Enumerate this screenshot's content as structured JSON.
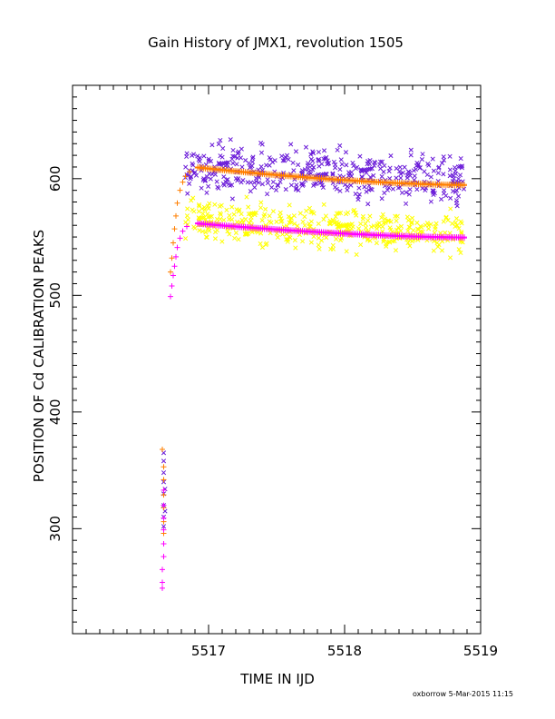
{
  "chart_data": {
    "type": "scatter",
    "title": "Gain History of JMX1, revolution 1505",
    "xlabel": "TIME IN IJD",
    "ylabel": "POSITION OF Cd CALIBRATION PEAKS",
    "xlim": [
      5516.0,
      5519.0
    ],
    "ylim": [
      210,
      680
    ],
    "x_ticks": [
      5517,
      5518,
      5519
    ],
    "y_ticks": [
      300,
      400,
      500,
      600
    ],
    "grid": false,
    "legend": "none",
    "series": [
      {
        "color": "#6a1bd8",
        "marker": "x",
        "points": [
          [
            5516.67,
            365
          ],
          [
            5516.67,
            358
          ],
          [
            5516.67,
            348
          ],
          [
            5516.67,
            340
          ],
          [
            5516.67,
            330
          ],
          [
            5516.67,
            320
          ],
          [
            5516.67,
            310
          ],
          [
            5516.67,
            302
          ],
          [
            5516.68,
            315
          ],
          [
            5516.68,
            334
          ]
        ],
        "cloud": {
          "x_start": 5516.83,
          "x_end": 5518.88,
          "center_start": 612,
          "center_end": 600,
          "spread": 20,
          "count": 430,
          "seed": 7
        }
      },
      {
        "color": "#ffff00",
        "marker": "x",
        "cloud": {
          "x_start": 5516.83,
          "x_end": 5518.88,
          "center_start": 566,
          "center_end": 552,
          "spread": 17,
          "count": 430,
          "seed": 19
        }
      },
      {
        "color": "#ff7f00",
        "marker": "+",
        "points": [
          [
            5516.66,
            368
          ],
          [
            5516.67,
            353
          ],
          [
            5516.67,
            342
          ],
          [
            5516.67,
            329
          ],
          [
            5516.67,
            318
          ],
          [
            5516.67,
            306
          ],
          [
            5516.67,
            296
          ],
          [
            5516.72,
            520
          ],
          [
            5516.73,
            532
          ],
          [
            5516.74,
            545
          ],
          [
            5516.75,
            557
          ],
          [
            5516.76,
            568
          ],
          [
            5516.77,
            579
          ],
          [
            5516.79,
            590
          ],
          [
            5516.81,
            597
          ],
          [
            5516.83,
            602
          ],
          [
            5516.86,
            606
          ]
        ],
        "trend": {
          "peak_x": 5516.92,
          "peak_y": 610,
          "end_x": 5518.88,
          "end_y": 595
        }
      },
      {
        "color": "#ff00ff",
        "marker": "+",
        "points": [
          [
            5516.66,
            249
          ],
          [
            5516.66,
            254
          ],
          [
            5516.66,
            265
          ],
          [
            5516.67,
            276
          ],
          [
            5516.67,
            287
          ],
          [
            5516.67,
            299
          ],
          [
            5516.67,
            309
          ],
          [
            5516.67,
            320
          ],
          [
            5516.67,
            333
          ],
          [
            5516.72,
            499
          ],
          [
            5516.73,
            508
          ],
          [
            5516.74,
            517
          ],
          [
            5516.75,
            525
          ],
          [
            5516.76,
            533
          ],
          [
            5516.77,
            541
          ],
          [
            5516.79,
            549
          ],
          [
            5516.81,
            555
          ],
          [
            5516.84,
            559
          ]
        ],
        "trend": {
          "peak_x": 5516.92,
          "peak_y": 562,
          "end_x": 5518.88,
          "end_y": 550
        }
      }
    ]
  },
  "footer": {
    "note": "oxborrow  5-Mar-2015 11:15"
  }
}
